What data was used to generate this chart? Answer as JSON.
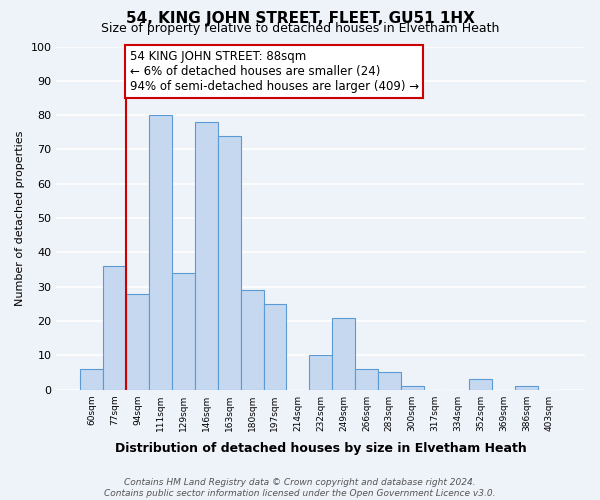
{
  "title": "54, KING JOHN STREET, FLEET, GU51 1HX",
  "subtitle": "Size of property relative to detached houses in Elvetham Heath",
  "xlabel": "Distribution of detached houses by size in Elvetham Heath",
  "ylabel": "Number of detached properties",
  "bin_labels": [
    "60sqm",
    "77sqm",
    "94sqm",
    "111sqm",
    "129sqm",
    "146sqm",
    "163sqm",
    "180sqm",
    "197sqm",
    "214sqm",
    "232sqm",
    "249sqm",
    "266sqm",
    "283sqm",
    "300sqm",
    "317sqm",
    "334sqm",
    "352sqm",
    "369sqm",
    "386sqm",
    "403sqm"
  ],
  "bar_heights": [
    6,
    36,
    28,
    80,
    34,
    78,
    74,
    29,
    25,
    0,
    10,
    21,
    6,
    5,
    1,
    0,
    0,
    3,
    0,
    1,
    0
  ],
  "bar_color": "#c5d8f0",
  "bar_edge_color": "#5b9bd5",
  "vline_x_index": 2,
  "vline_color": "#cc0000",
  "annotation_text": "54 KING JOHN STREET: 88sqm\n← 6% of detached houses are smaller (24)\n94% of semi-detached houses are larger (409) →",
  "annotation_box_color": "#ffffff",
  "annotation_box_edge_color": "#cc0000",
  "ylim": [
    0,
    100
  ],
  "yticks": [
    0,
    10,
    20,
    30,
    40,
    50,
    60,
    70,
    80,
    90,
    100
  ],
  "footnote": "Contains HM Land Registry data © Crown copyright and database right 2024.\nContains public sector information licensed under the Open Government Licence v3.0.",
  "bg_color": "#eef2f9",
  "grid_color": "#ffffff",
  "title_fontsize": 11,
  "subtitle_fontsize": 9,
  "annotation_fontsize": 8.5,
  "footnote_fontsize": 6.5
}
